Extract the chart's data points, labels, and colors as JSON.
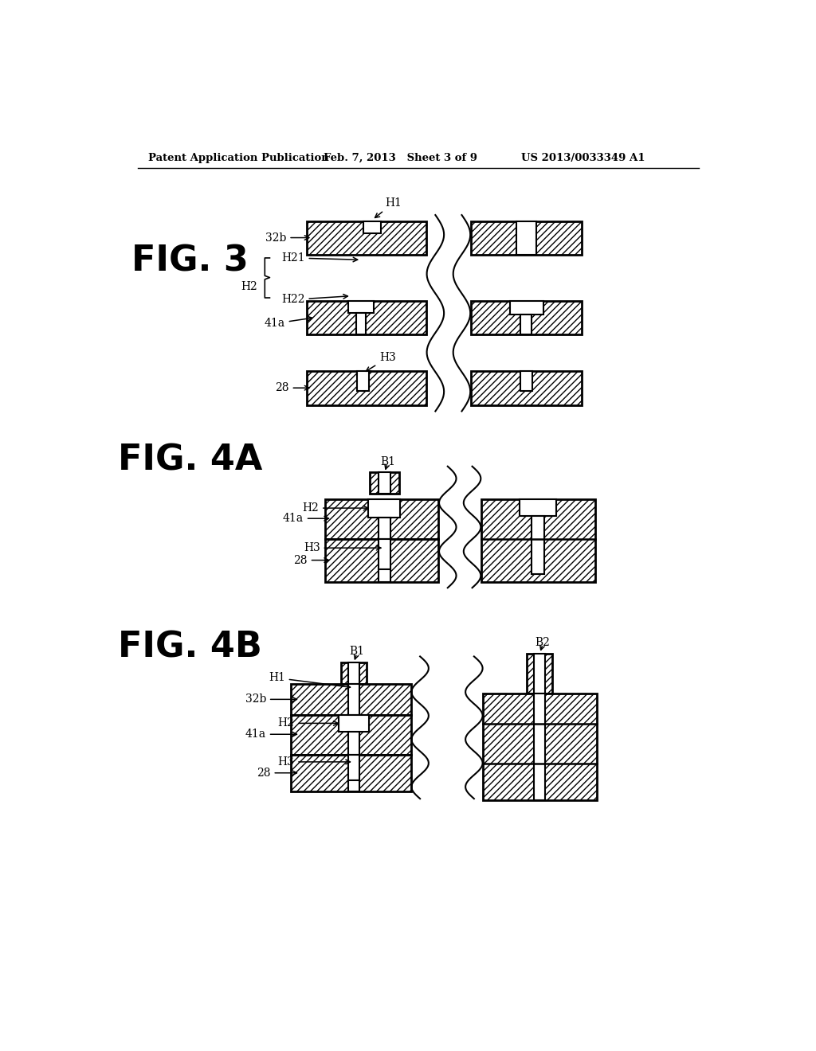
{
  "header_left": "Patent Application Publication",
  "header_mid": "Feb. 7, 2013   Sheet 3 of 9",
  "header_right": "US 2013/0033349 A1",
  "bg_color": "#ffffff"
}
